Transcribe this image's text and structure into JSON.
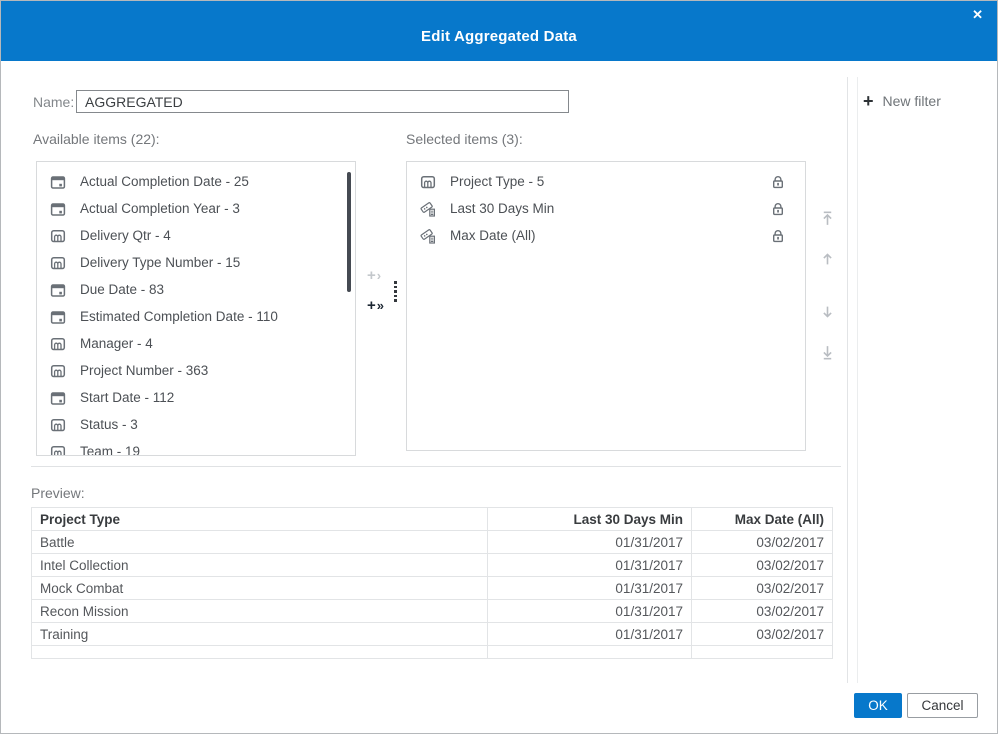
{
  "dialog": {
    "title": "Edit Aggregated Data",
    "close_icon": "✕"
  },
  "name_field": {
    "label": "Name:",
    "value": "AGGREGATED"
  },
  "available": {
    "label": "Available items (22):",
    "items": [
      {
        "icon": "calendar-icon",
        "label": "Actual Completion Date - 25"
      },
      {
        "icon": "calendar-icon",
        "label": "Actual Completion Year - 3"
      },
      {
        "icon": "category-icon",
        "label": "Delivery Qtr - 4"
      },
      {
        "icon": "category-icon",
        "label": "Delivery Type Number - 15"
      },
      {
        "icon": "calendar-icon",
        "label": "Due Date - 83"
      },
      {
        "icon": "calendar-icon",
        "label": "Estimated Completion Date - 110"
      },
      {
        "icon": "category-icon",
        "label": "Manager - 4"
      },
      {
        "icon": "category-icon",
        "label": "Project Number - 363"
      },
      {
        "icon": "calendar-icon",
        "label": "Start Date - 112"
      },
      {
        "icon": "category-icon",
        "label": "Status - 3"
      },
      {
        "icon": "category-icon",
        "label": "Team - 19"
      }
    ]
  },
  "selected": {
    "label": "Selected items (3):",
    "items": [
      {
        "icon": "category-icon",
        "label": "Project Type - 5",
        "locked": true
      },
      {
        "icon": "calculated-item-icon",
        "label": "Last 30 Days Min",
        "locked": true
      },
      {
        "icon": "calculated-item-icon",
        "label": "Max Date (All)",
        "locked": true
      }
    ]
  },
  "transfer_controls": {
    "add_icon": "plus-single-chevron",
    "add_plus": "+",
    "add_chevron": "›",
    "add_all_icon": "plus-double-chevron",
    "add_all_plus": "+",
    "add_all_chevron": "»",
    "drag_handle_icon": "vertical-dots"
  },
  "reorder_controls": {
    "move_to_top_icon": "arrow-up-to-top",
    "move_up_icon": "arrow-up",
    "move_down_icon": "arrow-down",
    "move_to_bottom_icon": "arrow-down-to-bottom"
  },
  "filter_panel": {
    "add_icon": "+",
    "new_filter_label": "New filter"
  },
  "preview": {
    "label": "Preview:",
    "table": {
      "columns": [
        "Project Type",
        "Last 30 Days Min",
        "Max Date (All)"
      ],
      "rows": [
        [
          "Battle",
          "01/31/2017",
          "03/02/2017"
        ],
        [
          "Intel Collection",
          "01/31/2017",
          "03/02/2017"
        ],
        [
          "Mock Combat",
          "01/31/2017",
          "03/02/2017"
        ],
        [
          "Recon Mission",
          "01/31/2017",
          "03/02/2017"
        ],
        [
          "Training",
          "01/31/2017",
          "03/02/2017"
        ]
      ]
    }
  },
  "actions": {
    "ok_label": "OK",
    "cancel_label": "Cancel"
  },
  "colors": {
    "header_bar": "#0778cb",
    "primary_button": "#0778cb",
    "title_text": "#ffffff",
    "lock_icon": "#6a7280"
  }
}
